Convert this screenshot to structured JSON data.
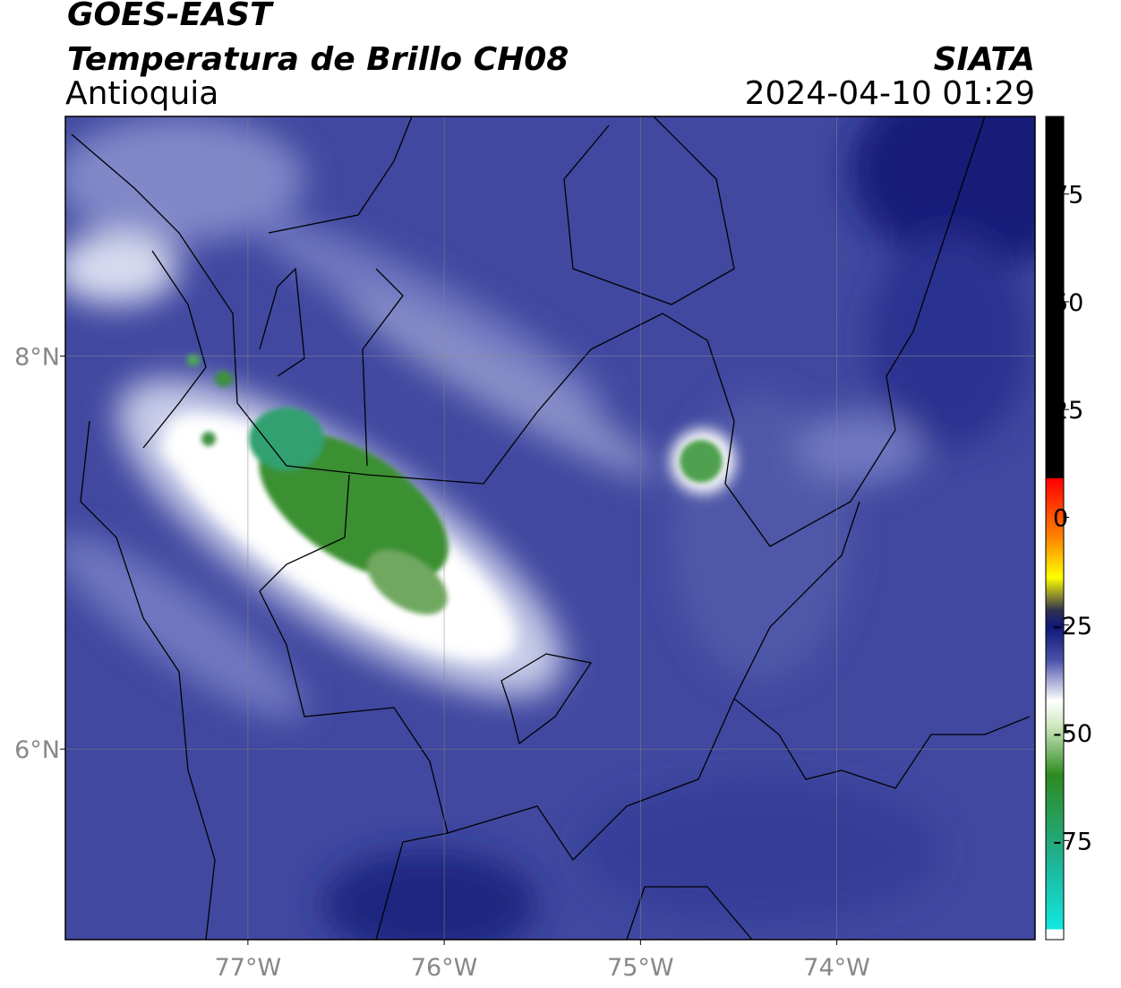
{
  "header": {
    "title": "GOES-EAST",
    "subtitle": "Temperatura de Brillo CH08",
    "region": "Antioquia",
    "source": "SIATA",
    "datetime": "2024-04-10 01:29"
  },
  "map": {
    "lonlim": [
      -77.93,
      -72.99
    ],
    "latlim": [
      5.03,
      9.22
    ],
    "lon_ticks": [
      {
        "value": -77,
        "label": "77°W"
      },
      {
        "value": -76,
        "label": "76°W"
      },
      {
        "value": -75,
        "label": "75°W"
      },
      {
        "value": -74,
        "label": "74°W"
      }
    ],
    "lat_ticks": [
      {
        "value": 8,
        "label": "8°N"
      },
      {
        "value": 6,
        "label": "6°N"
      }
    ],
    "grid": true
  },
  "colorbar": {
    "lim": [
      -98,
      93
    ],
    "ticks": [
      75,
      50,
      25,
      0,
      -25,
      -50,
      -75
    ]
  }
}
